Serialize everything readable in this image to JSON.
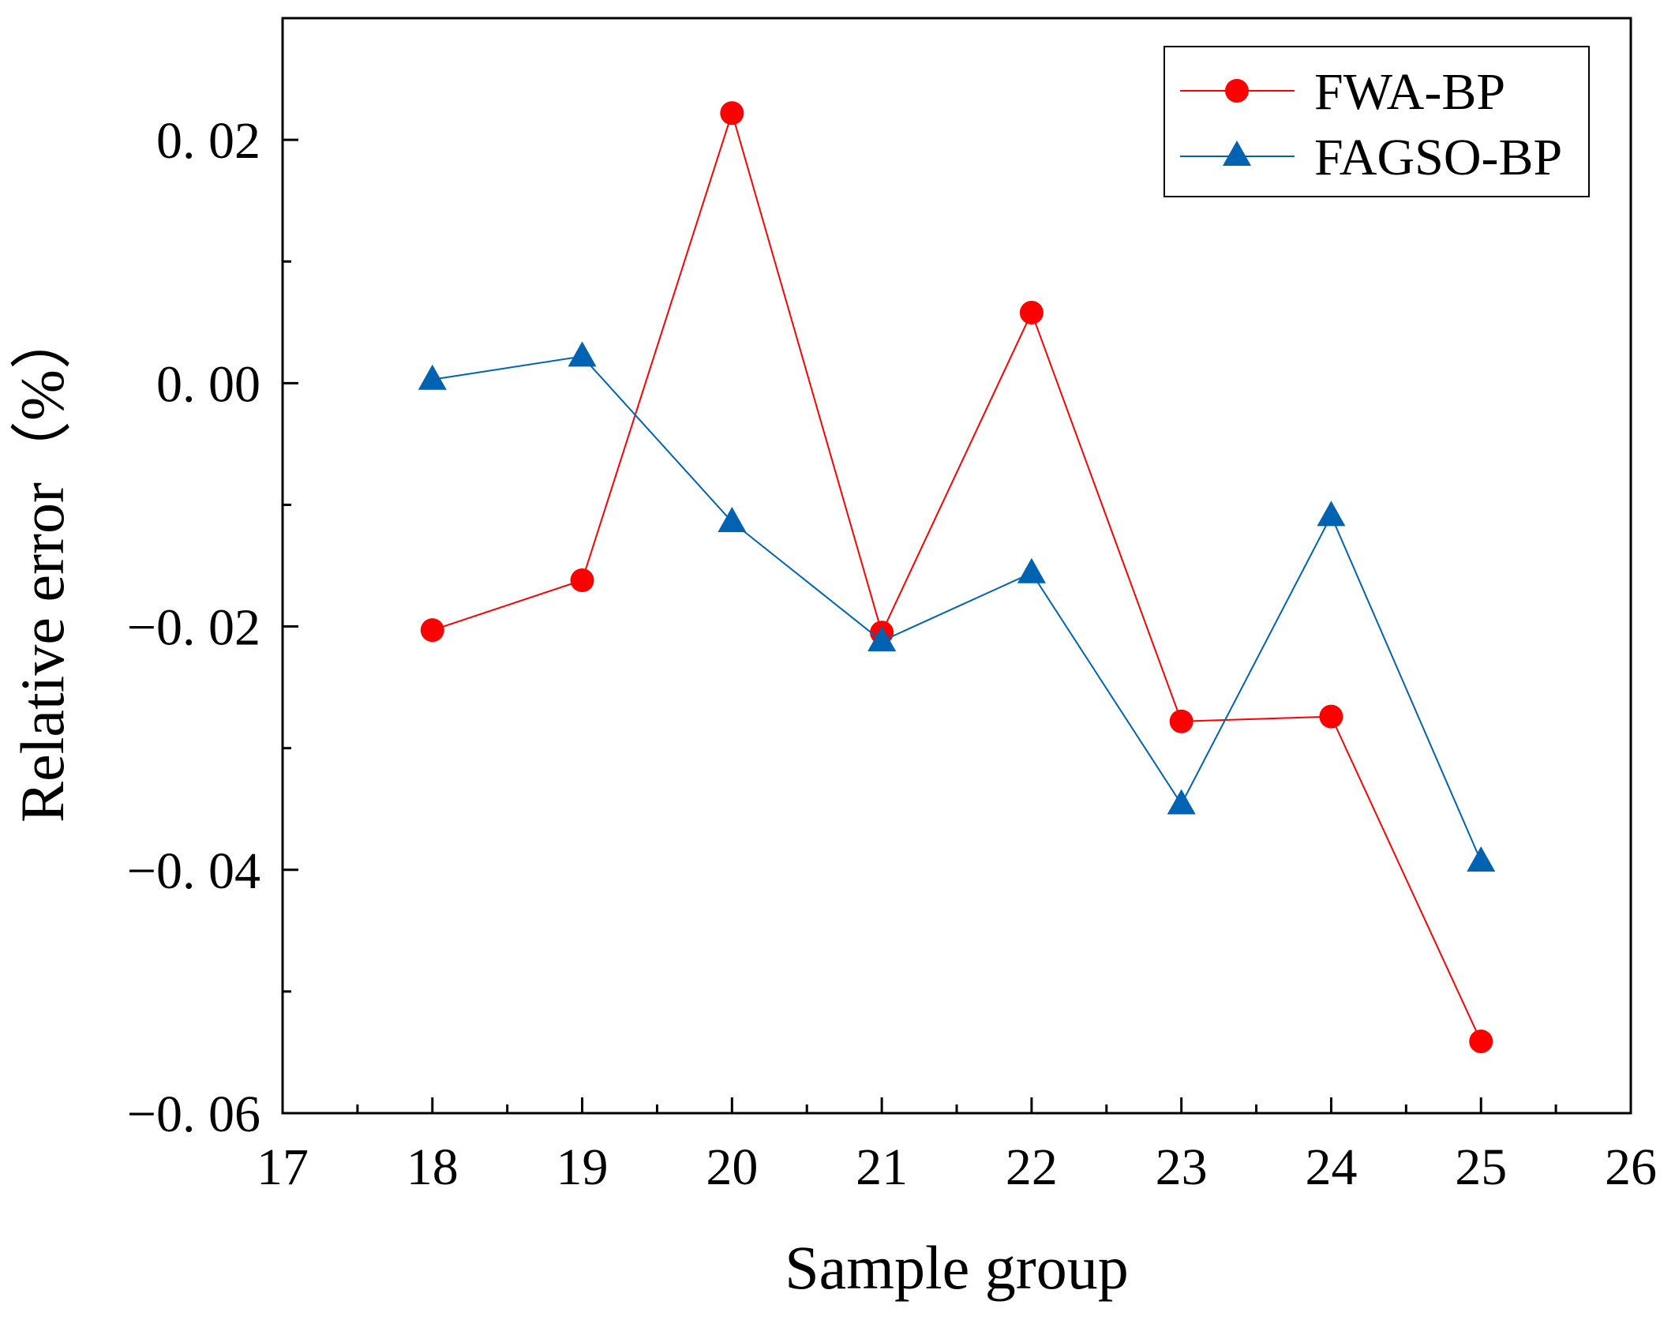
{
  "chart_data": {
    "type": "line",
    "title": "",
    "xlabel": "Sample group",
    "ylabel": "Relative error（%）",
    "xlim": [
      17,
      26
    ],
    "ylim": [
      -0.06,
      0.03
    ],
    "x_ticks": [
      17,
      18,
      19,
      20,
      21,
      22,
      23,
      24,
      25,
      26
    ],
    "x_tick_labels": [
      "17",
      "18",
      "19",
      "20",
      "21",
      "22",
      "23",
      "24",
      "25",
      "26"
    ],
    "y_ticks": [
      -0.06,
      -0.04,
      -0.02,
      0.0,
      0.02
    ],
    "y_tick_labels": [
      "−0. 06",
      "−0. 04",
      "−0. 02",
      "0. 00",
      "0. 02"
    ],
    "grid": false,
    "legend_position": "top-right",
    "x": [
      18,
      19,
      20,
      21,
      22,
      23,
      24,
      25
    ],
    "series": [
      {
        "name": "FWA-BP",
        "marker": "circle",
        "color": "#ff0000",
        "values": [
          -0.0203,
          -0.0162,
          0.0222,
          -0.0205,
          0.0058,
          -0.0278,
          -0.0274,
          -0.0541
        ]
      },
      {
        "name": "FAGSO-BP",
        "marker": "triangle",
        "color": "#0063b1",
        "values": [
          0.0003,
          0.0022,
          -0.0114,
          -0.0212,
          -0.0156,
          -0.0346,
          -0.0109,
          -0.0393
        ]
      }
    ]
  }
}
